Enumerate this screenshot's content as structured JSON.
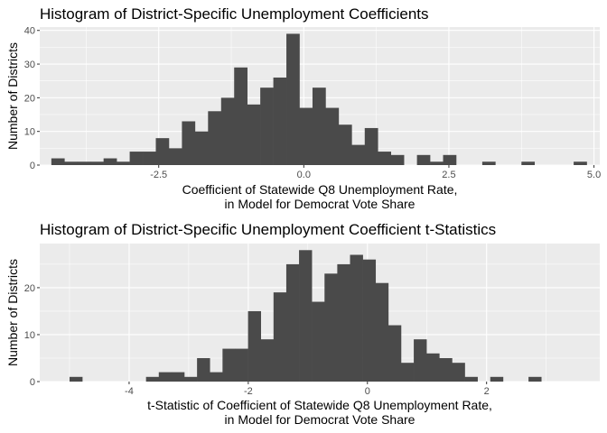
{
  "chart_data": [
    {
      "type": "bar",
      "title": "Histogram of District-Specific Unemployment Coefficients",
      "xlabel": [
        "Coefficient of Statewide Q8 Unemployment Rate,",
        "in Model for Democrat Vote Share"
      ],
      "ylabel": "Number of Districts",
      "xlim": [
        -4.55,
        5.1
      ],
      "ylim": [
        0,
        41
      ],
      "x_ticks": [
        -2.5,
        0.0,
        2.5,
        5.0
      ],
      "x_tick_labels": [
        "-2.5",
        "0.0",
        "2.5",
        "5.0"
      ],
      "y_ticks": [
        0,
        10,
        20,
        30,
        40
      ],
      "y_tick_labels": [
        "0",
        "10",
        "20",
        "30",
        "40"
      ],
      "grid": true,
      "bin_start": -4.35,
      "bin_width": 0.225,
      "counts": [
        2,
        1,
        1,
        1,
        2,
        1,
        4,
        4,
        8,
        5,
        13,
        10,
        16,
        20,
        29,
        18,
        23,
        26,
        39,
        17,
        23,
        17,
        12,
        6,
        11,
        4,
        3,
        0,
        3,
        1,
        3,
        0,
        0,
        1,
        0,
        0,
        1,
        0,
        0,
        0,
        1
      ]
    },
    {
      "type": "bar",
      "title": "Histogram of District-Specific Unemployment Coefficient t-Statistics",
      "xlabel": [
        "t-Statistic of Coefficient of Statewide Q8 Unemployment Rate,",
        "in Model for Democrat Vote Share"
      ],
      "ylabel": "Number of Districts",
      "xlim": [
        -5.5,
        3.9
      ],
      "ylim": [
        0,
        29.4
      ],
      "x_ticks": [
        -4,
        -2,
        0,
        2
      ],
      "x_tick_labels": [
        "-4",
        "-2",
        "0",
        "2"
      ],
      "y_ticks": [
        0,
        10,
        20
      ],
      "y_tick_labels": [
        "0",
        "10",
        "20"
      ],
      "grid": true,
      "bin_start": -5.0,
      "bin_width": 0.214,
      "counts": [
        1,
        0,
        0,
        0,
        0,
        0,
        1,
        2,
        2,
        1,
        5,
        2,
        7,
        7,
        15,
        9,
        19,
        25,
        28,
        17,
        23,
        25,
        27,
        26,
        21,
        12,
        4,
        9,
        6,
        5,
        4,
        1,
        0,
        1,
        0,
        0,
        1
      ]
    }
  ]
}
